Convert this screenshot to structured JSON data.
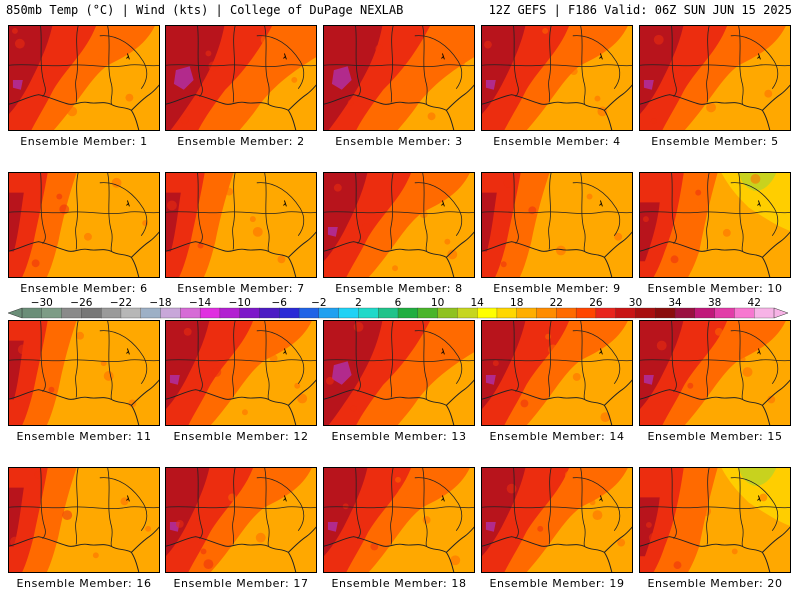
{
  "header": {
    "left": "850mb Temp (°C) | Wind (kts) | College of DuPage NEXLAB",
    "right": "12Z GEFS | F186 Valid: 06Z SUN JUN 15 2025"
  },
  "panels": [
    {
      "label": "Ensemble Member: 1",
      "scenario": "hot-west"
    },
    {
      "label": "Ensemble Member: 2",
      "scenario": "very-hot-west"
    },
    {
      "label": "Ensemble Member: 3",
      "scenario": "very-hot-west"
    },
    {
      "label": "Ensemble Member: 4",
      "scenario": "hot-west"
    },
    {
      "label": "Ensemble Member: 5",
      "scenario": "hot-west"
    },
    {
      "label": "Ensemble Member: 6",
      "scenario": "moderate"
    },
    {
      "label": "Ensemble Member: 7",
      "scenario": "moderate"
    },
    {
      "label": "Ensemble Member: 8",
      "scenario": "hot-west"
    },
    {
      "label": "Ensemble Member: 9",
      "scenario": "moderate"
    },
    {
      "label": "Ensemble Member: 10",
      "scenario": "cool-northeast"
    },
    {
      "label": "Ensemble Member: 11",
      "scenario": "moderate"
    },
    {
      "label": "Ensemble Member: 12",
      "scenario": "hot-west"
    },
    {
      "label": "Ensemble Member: 13",
      "scenario": "very-hot-west"
    },
    {
      "label": "Ensemble Member: 14",
      "scenario": "hot-west"
    },
    {
      "label": "Ensemble Member: 15",
      "scenario": "hot-west"
    },
    {
      "label": "Ensemble Member: 16",
      "scenario": "moderate"
    },
    {
      "label": "Ensemble Member: 17",
      "scenario": "hot-west"
    },
    {
      "label": "Ensemble Member: 18",
      "scenario": "hot-west"
    },
    {
      "label": "Ensemble Member: 19",
      "scenario": "hot-west"
    },
    {
      "label": "Ensemble Member: 20",
      "scenario": "cool-northeast"
    }
  ],
  "colorbar": {
    "unit": "°C",
    "ticks": [
      "-30",
      "-26",
      "-22",
      "-18",
      "-14",
      "-10",
      "-6",
      "-2",
      "2",
      "6",
      "10",
      "14",
      "18",
      "22",
      "26",
      "30",
      "34",
      "38",
      "42"
    ],
    "min": -32,
    "max": 44,
    "step": 2,
    "colors": [
      "#6b8e78",
      "#7d9c86",
      "#8a8a8a",
      "#777777",
      "#9a9a9a",
      "#b7b7b7",
      "#9db0c6",
      "#c8a7d9",
      "#d66bd6",
      "#e02fe0",
      "#b21fd1",
      "#7d18c9",
      "#4b1bc4",
      "#2a2ad6",
      "#1f63e6",
      "#1fa0f0",
      "#1fd2f5",
      "#1fd9c9",
      "#1fc38a",
      "#1fae40",
      "#4ab52a",
      "#8fc21f",
      "#c6d61f",
      "#ffff00",
      "#ffd700",
      "#ffae00",
      "#ff8c00",
      "#ff6a00",
      "#ff4500",
      "#e8251c",
      "#c81414",
      "#a80f0f",
      "#8a0c0c",
      "#9a1040",
      "#c0187a",
      "#e23ca8",
      "#f777d0",
      "#f7b3e6"
    ]
  },
  "map_colors": {
    "bg": "#ffa800",
    "warm": "#ff6a00",
    "hot": "#ec2d0f",
    "very_hot": "#b8141c",
    "extreme": "#8e0c2c",
    "magenta": "#b22a8c",
    "cool": "#ffce00",
    "cooler": "#c8d21e"
  }
}
